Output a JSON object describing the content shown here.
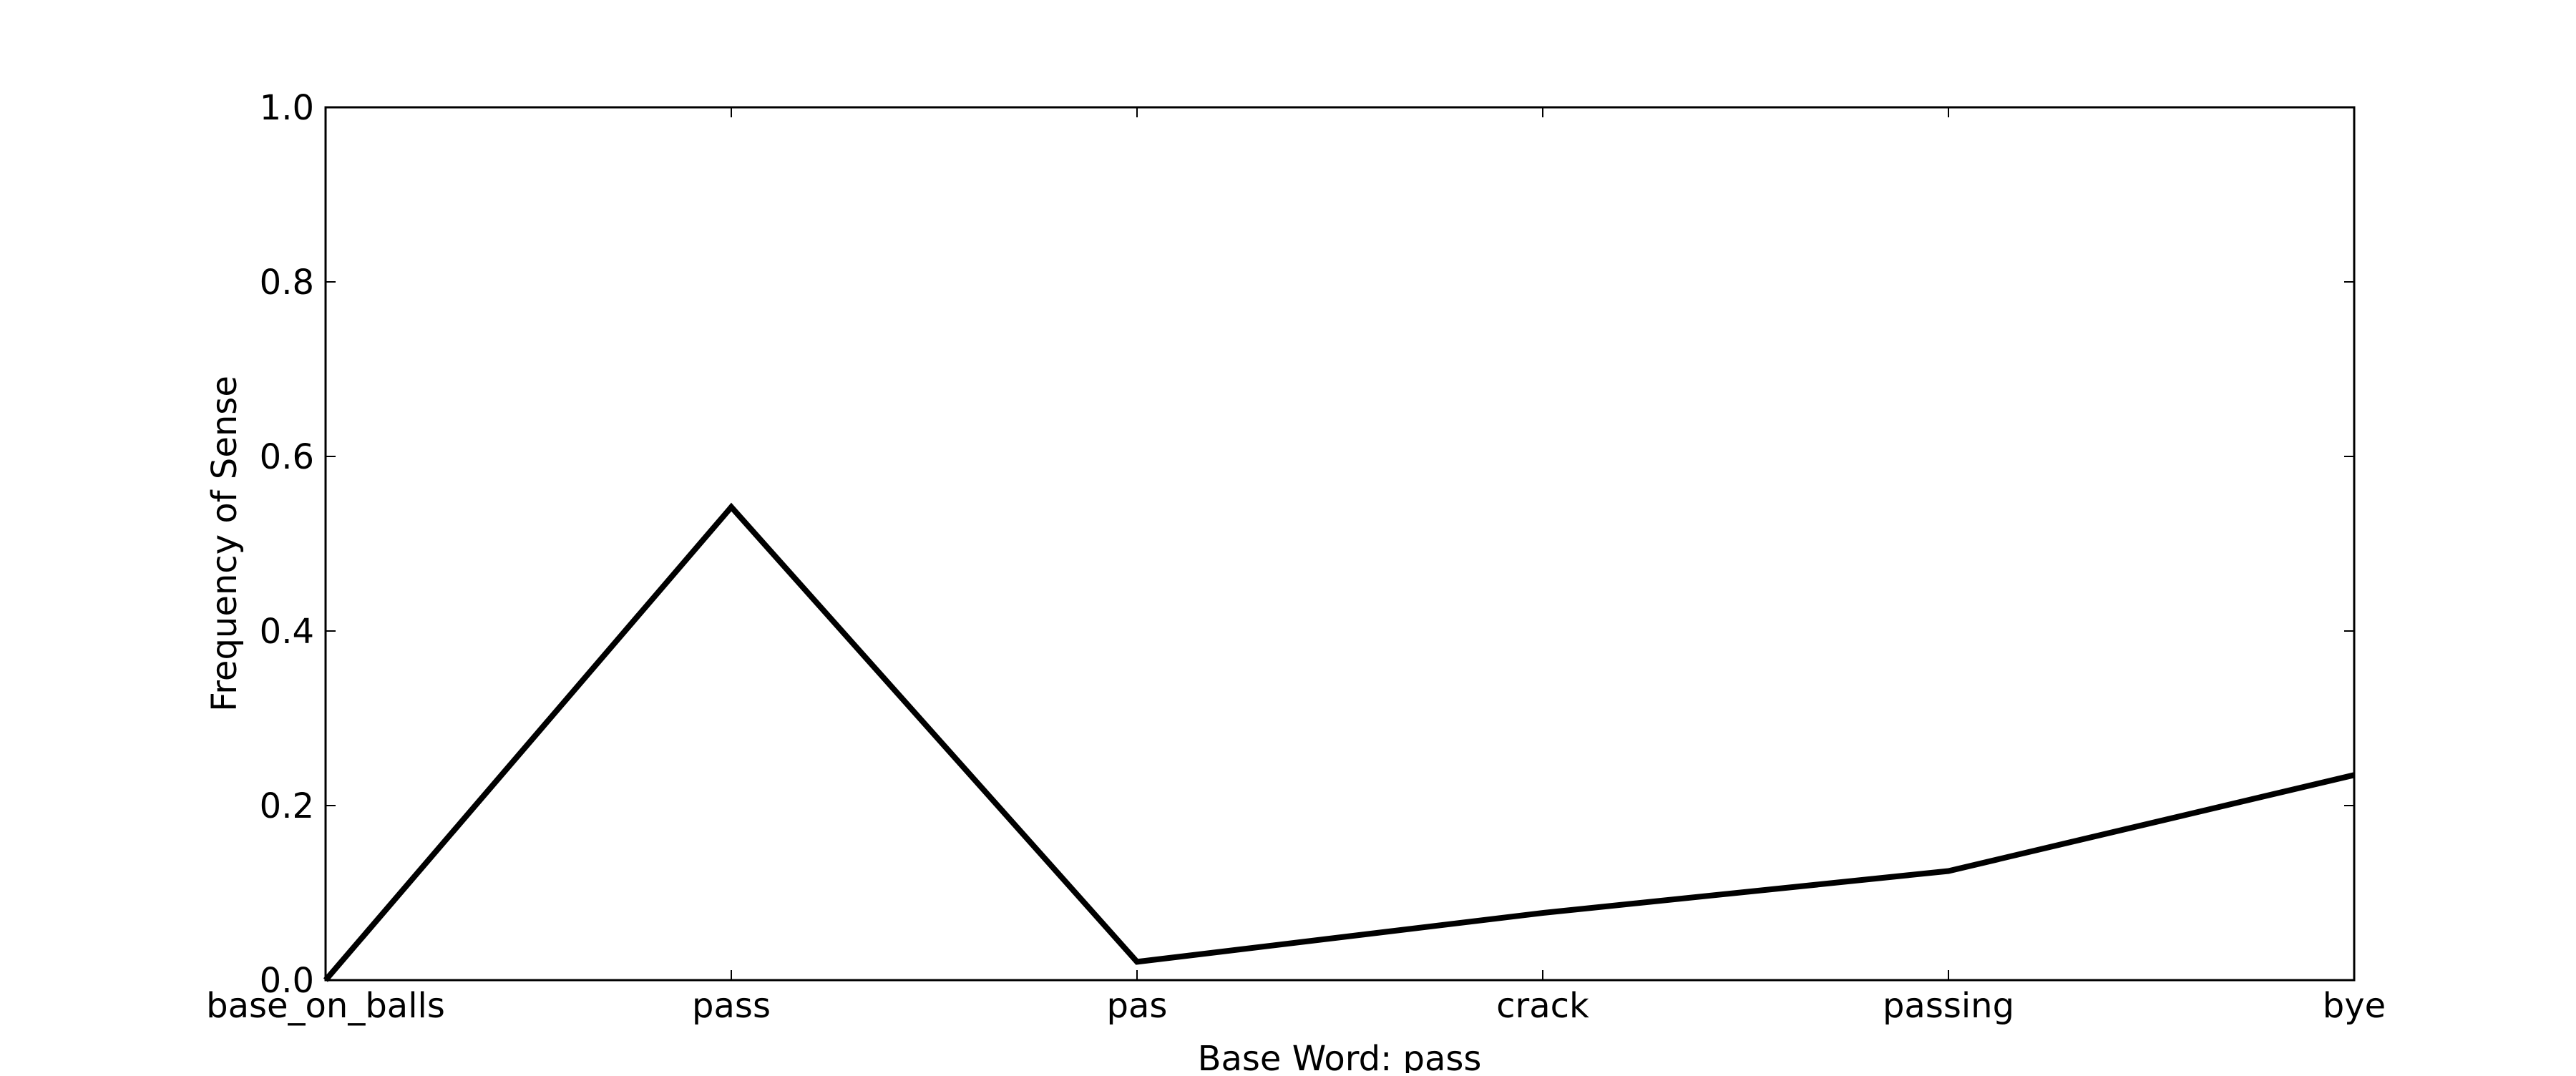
{
  "chart_data": {
    "type": "line",
    "categories": [
      "base_on_balls",
      "pass",
      "pas",
      "crack",
      "passing",
      "bye"
    ],
    "series": [
      {
        "values": [
          0.0,
          0.542,
          0.021,
          0.077,
          0.125,
          0.235
        ]
      }
    ],
    "xlabel": "Base Word: pass",
    "ylabel": "Frequency of Sense",
    "ylim": [
      0.0,
      1.0
    ],
    "yticks": [
      "0.0",
      "0.2",
      "0.4",
      "0.6",
      "0.8",
      "1.0"
    ],
    "grid": false,
    "legend": "none",
    "colors": {
      "line": "#000000",
      "axes": "#000000",
      "background": "#ffffff"
    }
  }
}
